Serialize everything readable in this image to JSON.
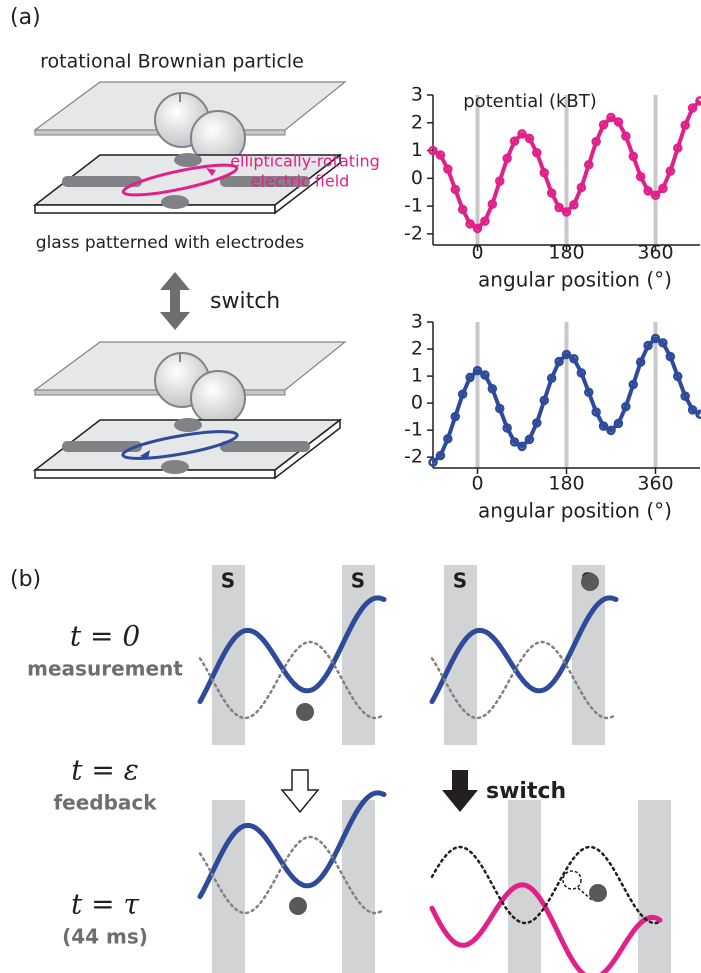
{
  "panel_a": {
    "label": "(a)",
    "particle_label": "rotational Brownian particle",
    "field_label_1": "elliptically-rotating",
    "field_label_2": "electric field",
    "glass_label": "glass patterned with electrodes",
    "switch_label": "switch"
  },
  "panel_b": {
    "label": "(b)",
    "rows": [
      {
        "time": "t = 0",
        "caption": "measurement"
      },
      {
        "time": "t = ε",
        "caption": "feedback"
      },
      {
        "time": "t = τ",
        "caption": "(44 ms)"
      }
    ],
    "state_labels": [
      "S",
      "S",
      "S",
      "S"
    ],
    "switch_label": "switch"
  },
  "chart_data": [
    {
      "type": "scatter",
      "title": "potential (kBT)",
      "xlabel": "angular position (°)",
      "color": "#e0218a",
      "xlim": [
        -90,
        450
      ],
      "ylim": [
        -2.4,
        3
      ],
      "xticks": [
        0,
        180,
        360
      ],
      "yticks": [
        -2,
        -1,
        0,
        1,
        2,
        3
      ],
      "grid": true,
      "x": [
        -90,
        -75,
        -60,
        -45,
        -30,
        -15,
        0,
        15,
        30,
        45,
        60,
        75,
        90,
        105,
        120,
        135,
        150,
        165,
        180,
        195,
        210,
        225,
        240,
        255,
        270,
        285,
        300,
        315,
        330,
        345,
        360,
        375,
        390,
        405,
        420,
        435,
        450
      ],
      "values": [
        1.0,
        0.84,
        0.33,
        -0.4,
        -1.12,
        -1.64,
        -1.8,
        -1.54,
        -0.93,
        -0.1,
        0.72,
        1.34,
        1.6,
        1.44,
        0.92,
        0.2,
        -0.53,
        -1.05,
        -1.21,
        -0.95,
        -0.33,
        0.49,
        1.32,
        1.93,
        2.19,
        2.03,
        1.52,
        0.79,
        0.06,
        -0.45,
        -0.61,
        -0.36,
        0.26,
        1.09,
        1.91,
        2.53,
        2.79
      ]
    },
    {
      "type": "scatter",
      "xlabel": "angular position (°)",
      "color": "#2e4a9b",
      "xlim": [
        -90,
        450
      ],
      "ylim": [
        -2.4,
        3
      ],
      "xticks": [
        0,
        180,
        360
      ],
      "yticks": [
        -2,
        -1,
        0,
        1,
        2,
        3
      ],
      "grid": true,
      "x": [
        -90,
        -75,
        -60,
        -45,
        -30,
        -15,
        0,
        15,
        30,
        45,
        60,
        75,
        90,
        105,
        120,
        135,
        150,
        165,
        180,
        195,
        210,
        225,
        240,
        255,
        270,
        285,
        300,
        315,
        330,
        345,
        360,
        375,
        390,
        405,
        420,
        435,
        450
      ],
      "values": [
        -2.19,
        -1.94,
        -1.32,
        -0.5,
        0.33,
        0.95,
        1.2,
        1.04,
        0.53,
        -0.2,
        -0.92,
        -1.44,
        -1.6,
        -1.34,
        -0.73,
        0.1,
        0.92,
        1.54,
        1.8,
        1.64,
        1.12,
        0.4,
        -0.33,
        -0.85,
        -1.01,
        -0.75,
        -0.13,
        0.69,
        1.52,
        2.13,
        2.39,
        2.23,
        1.72,
        0.99,
        0.26,
        -0.25,
        -0.41
      ]
    }
  ]
}
